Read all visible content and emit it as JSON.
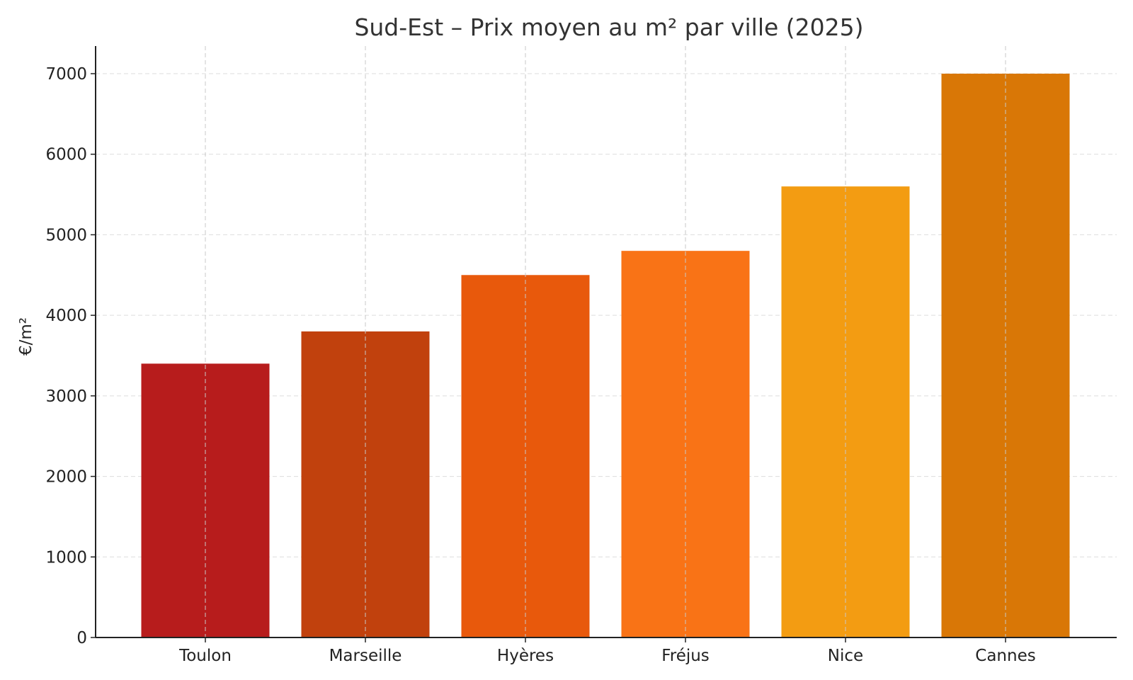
{
  "chart_data": {
    "type": "bar",
    "title": "Sud-Est – Prix moyen au m² par ville (2025)",
    "xlabel": "",
    "ylabel": "€/m²",
    "categories": [
      "Toulon",
      "Marseille",
      "Hyères",
      "Fréjus",
      "Nice",
      "Cannes"
    ],
    "values": [
      3400,
      3800,
      4500,
      4800,
      5600,
      7000
    ],
    "colors": [
      "#b71c1c",
      "#c1410d",
      "#e8590c",
      "#f97316",
      "#f39c12",
      "#d97706"
    ],
    "ylim": [
      0,
      7350
    ],
    "yticks": [
      0,
      1000,
      2000,
      3000,
      4000,
      5000,
      6000,
      7000
    ],
    "grid": true,
    "legend": null
  }
}
